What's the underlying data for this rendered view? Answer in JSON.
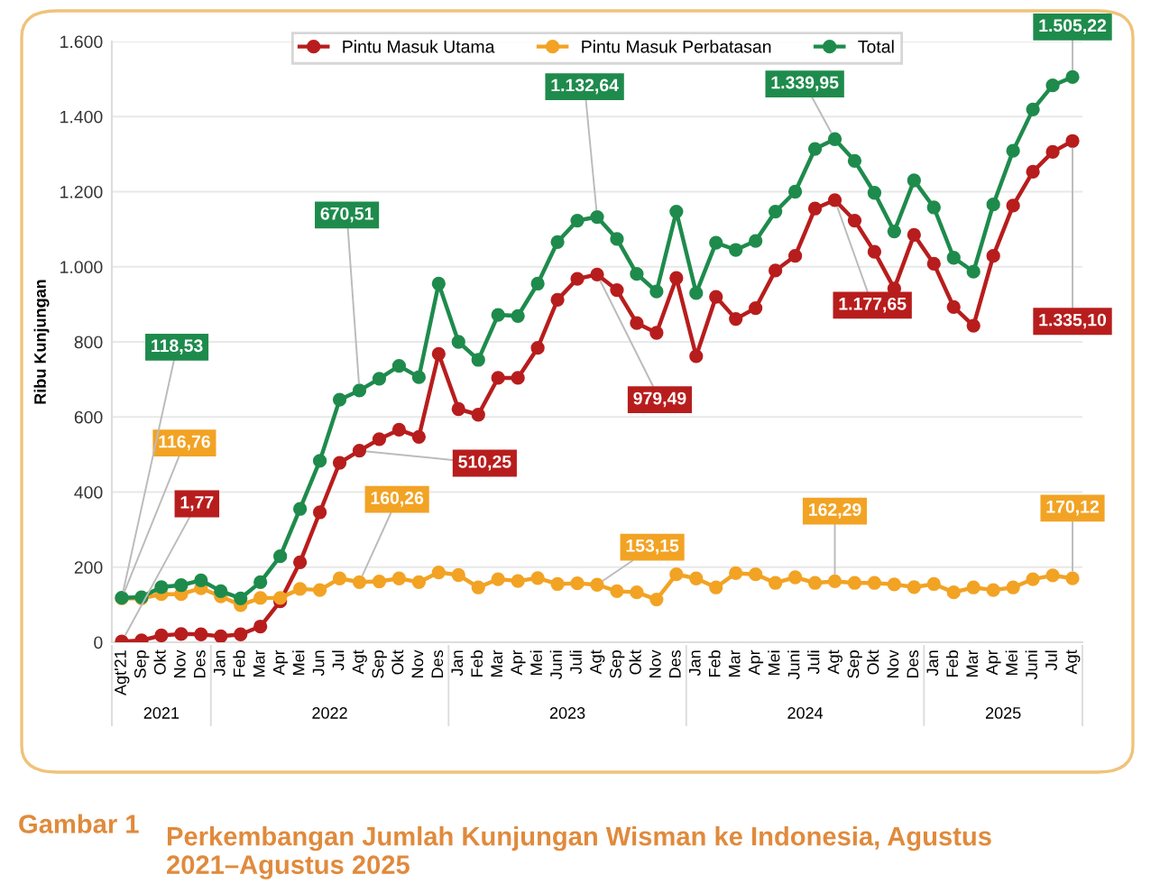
{
  "chart_data": {
    "type": "line",
    "ylabel": "Ribu Kunjungan",
    "categories": [
      "Agt'21",
      "Sep",
      "Okt",
      "Nov",
      "Des",
      "Jan",
      "Feb",
      "Mar",
      "Apr",
      "Mei",
      "Jun",
      "Jul",
      "Agt",
      "Sep",
      "Okt",
      "Nov",
      "Des",
      "Jan",
      "Feb",
      "Mar",
      "Apr",
      "Mei",
      "Juni",
      "Juli",
      "Agt",
      "Sep",
      "Okt",
      "Nov",
      "Des",
      "Jan",
      "Feb",
      "Mar",
      "Apr",
      "Mei",
      "Juni",
      "Juli",
      "Agt",
      "Sep",
      "Okt",
      "Nov",
      "Des",
      "Jan",
      "Feb",
      "Mar",
      "Apr",
      "Mei",
      "Juni",
      "Jul",
      "Agt"
    ],
    "ylim": [
      0,
      1600
    ],
    "yticks": [
      {
        "value": 0,
        "label": "0"
      },
      {
        "value": 200,
        "label": "200"
      },
      {
        "value": 400,
        "label": "400"
      },
      {
        "value": 600,
        "label": "600"
      },
      {
        "value": 800,
        "label": "800"
      },
      {
        "value": 1000,
        "label": "1.000"
      },
      {
        "value": 1200,
        "label": "1.200"
      },
      {
        "value": 1400,
        "label": "1.400"
      },
      {
        "value": 1600,
        "label": "1.600"
      }
    ],
    "grid": "y",
    "legend": "top",
    "marker": "circle",
    "line_style": "solid",
    "series": [
      {
        "name": "Pintu Masuk Utama",
        "color": "#b81d1d",
        "values": [
          1.77,
          5,
          18,
          22,
          21,
          16,
          21,
          42,
          109,
          213,
          346,
          478,
          510.25,
          541,
          566,
          547,
          768,
          621,
          606,
          704,
          704,
          784,
          912,
          968,
          979.49,
          938,
          850,
          824,
          970,
          762,
          920,
          861,
          890,
          990,
          1029,
          1155,
          1177.65,
          1123,
          1040,
          942,
          1085,
          1008,
          893,
          843,
          1029,
          1163,
          1253,
          1306,
          1335.1
        ],
        "value_labels": [
          "1,77",
          null,
          null,
          null,
          null,
          null,
          null,
          null,
          null,
          null,
          null,
          null,
          "510,25",
          null,
          null,
          null,
          null,
          null,
          null,
          null,
          null,
          null,
          null,
          null,
          "979,49",
          null,
          null,
          null,
          null,
          null,
          null,
          null,
          null,
          null,
          null,
          null,
          "1.177,65",
          null,
          null,
          null,
          null,
          null,
          null,
          null,
          null,
          null,
          null,
          null,
          "1.335,10"
        ]
      },
      {
        "name": "Pintu Masuk Perbatasan",
        "color": "#f2a324",
        "values": [
          116.76,
          117,
          128,
          128,
          144,
          122,
          99,
          118,
          118,
          142,
          139,
          170,
          160.26,
          162,
          170,
          160,
          186,
          179,
          146,
          168,
          163,
          171,
          155,
          157,
          153.15,
          136,
          133,
          114,
          181,
          170,
          146,
          184,
          181,
          158,
          173,
          158,
          162.29,
          158,
          158,
          154,
          147,
          155,
          133,
          146,
          139,
          146,
          168,
          178,
          170.12
        ],
        "value_labels": [
          "116,76",
          null,
          null,
          null,
          null,
          null,
          null,
          null,
          null,
          null,
          null,
          null,
          "160,26",
          null,
          null,
          null,
          null,
          null,
          null,
          null,
          null,
          null,
          null,
          null,
          "153,15",
          null,
          null,
          null,
          null,
          null,
          null,
          null,
          null,
          null,
          null,
          null,
          "162,29",
          null,
          null,
          null,
          null,
          null,
          null,
          null,
          null,
          null,
          null,
          null,
          "170,12"
        ]
      },
      {
        "name": "Total",
        "color": "#1e8b4c",
        "values": [
          118.53,
          120,
          147,
          152,
          165,
          136,
          117,
          160,
          229,
          355,
          483,
          646,
          670.51,
          702,
          736,
          706,
          955,
          800,
          752,
          872,
          869,
          955,
          1066,
          1123,
          1132.64,
          1074,
          981,
          934,
          1147,
          930,
          1064,
          1045,
          1069,
          1147,
          1200,
          1314,
          1339.95,
          1282,
          1197,
          1094,
          1230,
          1158,
          1024,
          987,
          1166,
          1309,
          1419,
          1483,
          1505.22
        ],
        "value_labels": [
          "118,53",
          null,
          null,
          null,
          null,
          null,
          null,
          null,
          null,
          null,
          null,
          null,
          "670,51",
          null,
          null,
          null,
          null,
          null,
          null,
          null,
          null,
          null,
          null,
          null,
          "1.132,64",
          null,
          null,
          null,
          null,
          null,
          null,
          null,
          null,
          null,
          null,
          null,
          "1.339,95",
          null,
          null,
          null,
          null,
          null,
          null,
          null,
          null,
          null,
          null,
          null,
          "1.505,22"
        ]
      }
    ],
    "annotations": [
      "2021",
      "2022",
      "2023",
      "2024",
      "2025",
      "Gambar 1",
      "Perkembangan Jumlah Kunjungan Wisman ke Indonesia, Agustus 2021–Agustus 2025"
    ]
  }
}
